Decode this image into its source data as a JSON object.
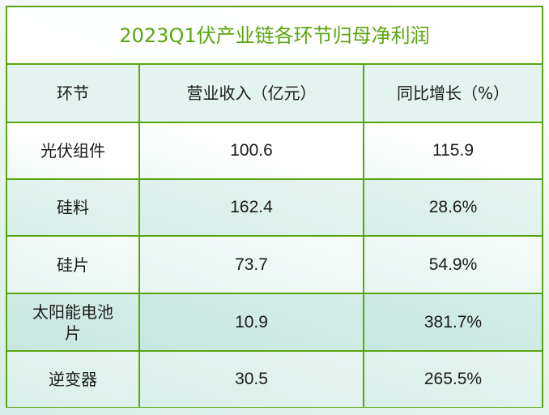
{
  "table": {
    "title": "2023Q1伏产业链各环节归母净利润",
    "headers": [
      "环节",
      "营业收入（亿元）",
      "同比增长（%）"
    ],
    "rows": [
      {
        "stage": "光伏组件",
        "revenue": "100.6",
        "yoy_growth": "115.9"
      },
      {
        "stage": "硅料",
        "revenue": "162.4",
        "yoy_growth": "28.6%"
      },
      {
        "stage": "硅片",
        "revenue": "73.7",
        "yoy_growth": "54.9%"
      },
      {
        "stage": "太阳能电池片",
        "revenue": "10.9",
        "yoy_growth": "381.7%"
      },
      {
        "stage": "逆变器",
        "revenue": "30.5",
        "yoy_growth": "265.5%"
      }
    ]
  },
  "colors": {
    "border": "#5aa50f",
    "title_text": "#5aa50f",
    "body_text": "#1a1a1a",
    "header_bg": "#e3f3ef",
    "row_alt_bg": "#d5eee8"
  }
}
